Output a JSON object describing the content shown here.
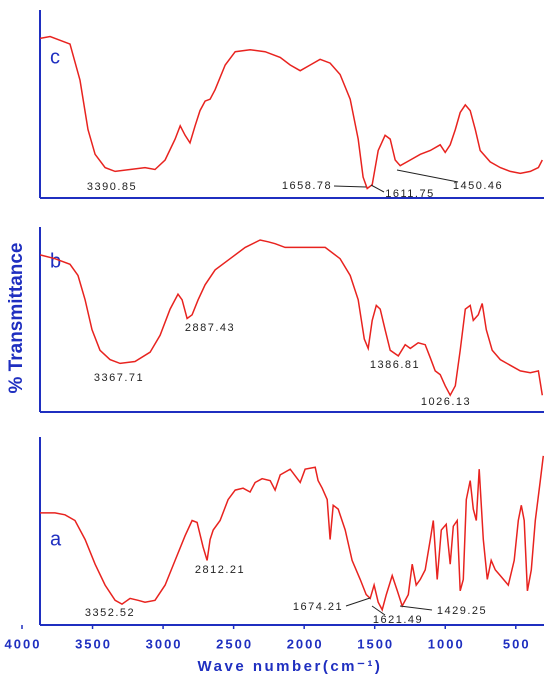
{
  "chart_data": [
    {
      "type": "line",
      "label": "c",
      "color": "#e8231f",
      "xlim": [
        4000,
        300
      ],
      "ylim": [
        0,
        100
      ],
      "x": [
        3872,
        3801,
        3730,
        3660,
        3589,
        3532,
        3482,
        3411,
        3340,
        3234,
        3128,
        3057,
        2986,
        2915,
        2879,
        2844,
        2809,
        2773,
        2738,
        2702,
        2667,
        2631,
        2560,
        2489,
        2383,
        2277,
        2170,
        2099,
        2028,
        1957,
        1887,
        1816,
        1745,
        1674,
        1617,
        1582,
        1553,
        1518,
        1475,
        1426,
        1390,
        1355,
        1319,
        1248,
        1177,
        1106,
        1036,
        1000,
        965,
        929,
        894,
        858,
        823,
        787,
        752,
        681,
        610,
        539,
        468,
        397,
        340,
        312
      ],
      "values": [
        84,
        85,
        83,
        81,
        62,
        36,
        23,
        16,
        14,
        15,
        16,
        15,
        20,
        31,
        38,
        33,
        29,
        38,
        46,
        51,
        52,
        57,
        70,
        77,
        78,
        77,
        74,
        70,
        67,
        70,
        73,
        71,
        65,
        52,
        31,
        11,
        5,
        7,
        25,
        33,
        31,
        20,
        17,
        20,
        23,
        25,
        28,
        24,
        28,
        36,
        45,
        49,
        46,
        36,
        25,
        19,
        16,
        14,
        13,
        14,
        16,
        20
      ],
      "annotations": [
        "3390.85",
        "1658.78",
        "1611.75",
        "1450.46"
      ]
    },
    {
      "type": "line",
      "label": "b",
      "color": "#e8231f",
      "xlim": [
        4000,
        300
      ],
      "ylim": [
        0,
        100
      ],
      "ylabel": "% Transmittance",
      "x": [
        3872,
        3766,
        3660,
        3603,
        3553,
        3504,
        3447,
        3376,
        3305,
        3199,
        3092,
        3021,
        2950,
        2894,
        2865,
        2830,
        2794,
        2752,
        2702,
        2631,
        2525,
        2418,
        2312,
        2255,
        2206,
        2135,
        2064,
        1957,
        1851,
        1745,
        1674,
        1617,
        1574,
        1546,
        1518,
        1489,
        1461,
        1426,
        1390,
        1333,
        1284,
        1248,
        1192,
        1142,
        1106,
        1071,
        1036,
        1000,
        965,
        929,
        894,
        858,
        823,
        801,
        766,
        738,
        709,
        667,
        610,
        539,
        468,
        397,
        340,
        312
      ],
      "values": [
        84,
        82,
        79,
        73,
        60,
        44,
        33,
        28,
        26,
        27,
        32,
        41,
        55,
        63,
        60,
        50,
        52,
        60,
        68,
        76,
        82,
        88,
        92,
        91,
        90,
        88,
        88,
        88,
        88,
        82,
        73,
        60,
        39,
        34,
        49,
        57,
        55,
        44,
        33,
        30,
        36,
        34,
        37,
        36,
        29,
        22,
        20,
        14,
        9,
        14,
        33,
        55,
        57,
        49,
        52,
        58,
        44,
        33,
        28,
        25,
        22,
        21,
        22,
        9
      ],
      "annotations": [
        "2887.43",
        "3367.71",
        "1386.81",
        "1026.13"
      ]
    },
    {
      "type": "line",
      "label": "a",
      "color": "#e8231f",
      "xlim": [
        4000,
        300
      ],
      "ylim": [
        0,
        100
      ],
      "xticks": [
        4000,
        3500,
        3000,
        2500,
        2000,
        1500,
        1000,
        500
      ],
      "xlabel": "Wave number(cm⁻¹)",
      "x": [
        3872,
        3766,
        3695,
        3624,
        3553,
        3482,
        3411,
        3340,
        3291,
        3234,
        3177,
        3128,
        3057,
        2986,
        2915,
        2844,
        2794,
        2759,
        2716,
        2688,
        2667,
        2645,
        2596,
        2539,
        2489,
        2433,
        2383,
        2348,
        2298,
        2241,
        2206,
        2170,
        2099,
        2028,
        1993,
        1922,
        1901,
        1872,
        1837,
        1816,
        1794,
        1759,
        1709,
        1660,
        1603,
        1560,
        1532,
        1504,
        1475,
        1447,
        1418,
        1376,
        1340,
        1305,
        1262,
        1234,
        1206,
        1177,
        1142,
        1106,
        1085,
        1057,
        1028,
        993,
        965,
        943,
        915,
        894,
        872,
        851,
        823,
        801,
        780,
        759,
        730,
        702,
        674,
        645,
        610,
        553,
        511,
        482,
        461,
        440,
        418,
        390,
        362,
        326,
        305
      ],
      "values": [
        59,
        59,
        58,
        55,
        45,
        32,
        21,
        13,
        11,
        14,
        13,
        12,
        13,
        21,
        34,
        47,
        55,
        54,
        41,
        34,
        45,
        50,
        55,
        66,
        71,
        72,
        70,
        75,
        77,
        76,
        71,
        79,
        82,
        75,
        82,
        83,
        76,
        72,
        66,
        45,
        63,
        61,
        50,
        34,
        24,
        16,
        14,
        21,
        12,
        8,
        16,
        26,
        18,
        10,
        16,
        32,
        21,
        24,
        29,
        45,
        55,
        24,
        50,
        53,
        32,
        52,
        55,
        18,
        24,
        66,
        76,
        61,
        55,
        82,
        45,
        24,
        34,
        29,
        26,
        21,
        34,
        55,
        63,
        55,
        18,
        29,
        55,
        76,
        89
      ],
      "annotations": [
        "2812.21",
        "3352.52",
        "1674.21",
        "1621.49",
        "1429.25"
      ]
    }
  ]
}
